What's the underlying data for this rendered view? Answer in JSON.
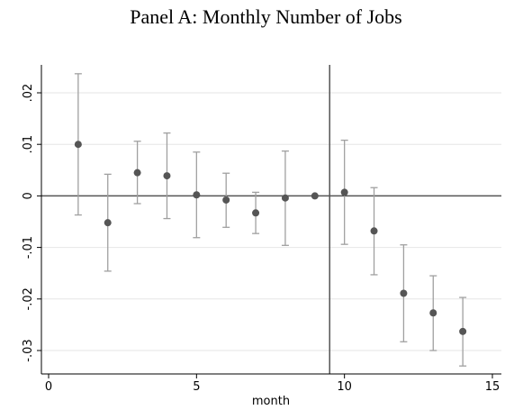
{
  "chart_data": {
    "type": "scatter",
    "title": "Panel A: Monthly Number of Jobs",
    "xlabel": "month",
    "ylabel": "",
    "xlim": [
      0,
      15
    ],
    "ylim": [
      -0.033,
      0.025
    ],
    "x_ticks": [
      0,
      5,
      10,
      15
    ],
    "x_tick_labels": [
      "0",
      "5",
      "10",
      "15"
    ],
    "y_ticks": [
      0.02,
      0.01,
      0,
      -0.01,
      -0.02,
      -0.03
    ],
    "y_tick_labels": [
      ".02",
      ".01",
      "0",
      "-.01",
      "-.02",
      "-.03"
    ],
    "grid": true,
    "reference_lines": {
      "horizontal_y": 0,
      "vertical_x": 9.5
    },
    "series": [
      {
        "x": [
          1,
          2,
          3,
          4,
          5,
          6,
          7,
          8,
          9,
          10,
          11,
          12,
          13,
          14
        ],
        "y": [
          0.01,
          -0.0052,
          0.0045,
          0.0039,
          0.0002,
          -0.0008,
          -0.0033,
          -0.0004,
          0.0,
          0.0007,
          -0.0068,
          -0.0189,
          -0.0227,
          -0.0263
        ],
        "ci_low": [
          -0.0037,
          -0.0146,
          -0.0015,
          -0.0044,
          -0.0081,
          -0.0061,
          -0.0073,
          -0.0096,
          0.0,
          -0.0094,
          -0.0153,
          -0.0283,
          -0.03,
          -0.033
        ],
        "ci_high": [
          0.0237,
          0.0042,
          0.0106,
          0.0122,
          0.0085,
          0.0044,
          0.0007,
          0.0087,
          0.0,
          0.0108,
          0.0016,
          -0.0095,
          -0.0155,
          -0.0197
        ]
      }
    ],
    "colors": {
      "marker": "#555555",
      "error_bar": "#a0a0a0",
      "axis": "#000000",
      "ref_line": "#555555",
      "grid": "#e6e6e6"
    }
  }
}
